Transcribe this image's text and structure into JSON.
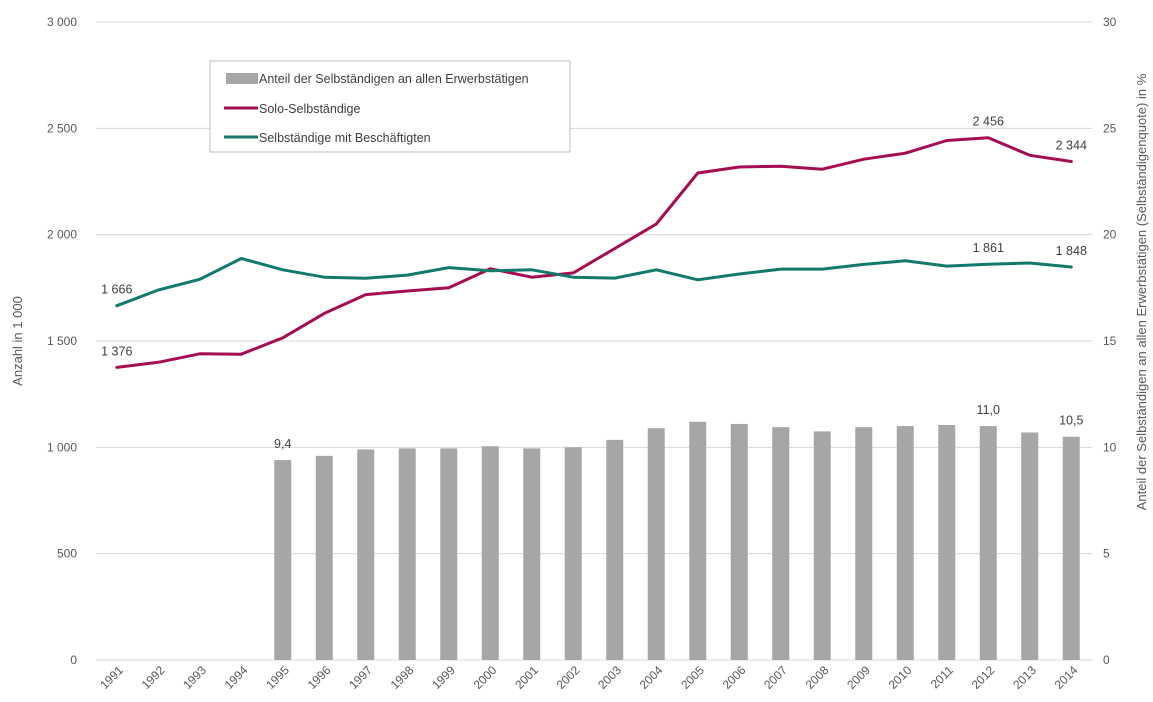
{
  "chart_data": {
    "type": "bar+line",
    "categories": [
      "1991",
      "1992",
      "1993",
      "1994",
      "1995",
      "1996",
      "1997",
      "1998",
      "1999",
      "2000",
      "2001",
      "2002",
      "2003",
      "2004",
      "2005",
      "2006",
      "2007",
      "2008",
      "2009",
      "2010",
      "2011",
      "2012",
      "2013",
      "2014"
    ],
    "series": [
      {
        "name": "Anteil der Selbständigen an allen Erwerbstätigen",
        "type": "bar",
        "axis": "right",
        "color": "#a6a6a6",
        "values": [
          null,
          null,
          null,
          null,
          9.4,
          9.6,
          9.9,
          9.95,
          9.95,
          10.05,
          9.95,
          10.0,
          10.35,
          10.9,
          11.2,
          11.1,
          10.95,
          10.75,
          10.95,
          11.0,
          11.05,
          11.0,
          10.7,
          10.5
        ]
      },
      {
        "name": "Solo-Selbständige",
        "type": "line",
        "axis": "left",
        "color": "#a50d52",
        "values": [
          1376,
          1400,
          1440,
          1438,
          1515,
          1630,
          1718,
          1735,
          1750,
          1840,
          1800,
          1820,
          1935,
          2050,
          2290,
          2318,
          2322,
          2308,
          2355,
          2383,
          2443,
          2456,
          2373,
          2344
        ]
      },
      {
        "name": "Selbständige mit Beschäftigten",
        "type": "line",
        "axis": "left",
        "color": "#127a6b",
        "values": [
          1666,
          1740,
          1790,
          1888,
          1835,
          1800,
          1795,
          1810,
          1845,
          1830,
          1835,
          1800,
          1796,
          1835,
          1788,
          1815,
          1838,
          1838,
          1860,
          1877,
          1852,
          1861,
          1867,
          1848
        ]
      }
    ],
    "y_left": {
      "label": "Anzahl in 1 000",
      "min": 0,
      "max": 3000,
      "ticks": [
        {
          "v": 0,
          "t": "0"
        },
        {
          "v": 500,
          "t": "500"
        },
        {
          "v": 1000,
          "t": "1 000"
        },
        {
          "v": 1500,
          "t": "1 500"
        },
        {
          "v": 2000,
          "t": "2 000"
        },
        {
          "v": 2500,
          "t": "2 500"
        },
        {
          "v": 3000,
          "t": "3 000"
        }
      ]
    },
    "y_right": {
      "label": "Anteil der Selbständigen an allen Erwerbstätigen (Selbständigenquote) in %",
      "min": 0,
      "max": 30,
      "ticks": [
        {
          "v": 0,
          "t": "0"
        },
        {
          "v": 5,
          "t": "5"
        },
        {
          "v": 10,
          "t": "10"
        },
        {
          "v": 15,
          "t": "15"
        },
        {
          "v": 20,
          "t": "20"
        },
        {
          "v": 25,
          "t": "25"
        },
        {
          "v": 30,
          "t": "30"
        }
      ]
    },
    "data_labels": [
      {
        "series": 0,
        "index": 4,
        "text": "9,4"
      },
      {
        "series": 0,
        "index": 21,
        "text": "11,0"
      },
      {
        "series": 0,
        "index": 23,
        "text": "10,5"
      },
      {
        "series": 1,
        "index": 0,
        "text": "1 376"
      },
      {
        "series": 1,
        "index": 21,
        "text": "2 456"
      },
      {
        "series": 1,
        "index": 23,
        "text": "2 344"
      },
      {
        "series": 2,
        "index": 0,
        "text": "1 666"
      },
      {
        "series": 2,
        "index": 21,
        "text": "1 861"
      },
      {
        "series": 2,
        "index": 23,
        "text": "1 848"
      }
    ],
    "grid": true,
    "legend_position": "top-left"
  }
}
